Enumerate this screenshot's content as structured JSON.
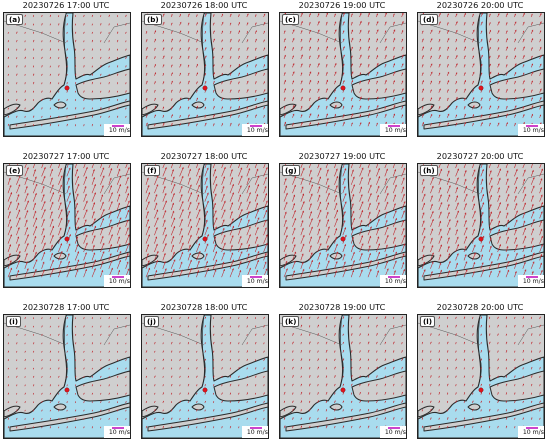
{
  "figure": {
    "colors": {
      "land": "#cfcfcf",
      "water": "#a9dcee",
      "coast": "#2b2b2b",
      "arrow": "#c0282f",
      "scale_bar": "#cc44cc",
      "site_marker": "#e0141e"
    },
    "scale_label": "10 m/s",
    "panels": [
      {
        "label": "(a)",
        "title": "20230726 17:00 UTC",
        "wind": {
          "u": 0.4,
          "v": 1.2
        }
      },
      {
        "label": "(b)",
        "title": "20230726 18:00 UTC",
        "wind": {
          "u": 0.8,
          "v": 2.0
        }
      },
      {
        "label": "(c)",
        "title": "20230726 19:00 UTC",
        "wind": {
          "u": 1.0,
          "v": 2.6
        }
      },
      {
        "label": "(d)",
        "title": "20230726 20:00 UTC",
        "wind": {
          "u": 1.0,
          "v": 2.4
        }
      },
      {
        "label": "(e)",
        "title": "20230727 17:00 UTC",
        "wind": {
          "u": 2.2,
          "v": 5.8
        }
      },
      {
        "label": "(f)",
        "title": "20230727 18:00 UTC",
        "wind": {
          "u": 2.2,
          "v": 5.8
        }
      },
      {
        "label": "(g)",
        "title": "20230727 19:00 UTC",
        "wind": {
          "u": 2.0,
          "v": 5.4
        }
      },
      {
        "label": "(h)",
        "title": "20230727 20:00 UTC",
        "wind": {
          "u": 1.8,
          "v": 4.8
        }
      },
      {
        "label": "(i)",
        "title": "20230728 17:00 UTC",
        "wind": {
          "u": 0.4,
          "v": 1.0
        }
      },
      {
        "label": "(j)",
        "title": "20230728 18:00 UTC",
        "wind": {
          "u": 0.5,
          "v": 1.2
        }
      },
      {
        "label": "(k)",
        "title": "20230728 19:00 UTC",
        "wind": {
          "u": 0.6,
          "v": 1.5
        }
      },
      {
        "label": "(l)",
        "title": "20230728 20:00 UTC",
        "wind": {
          "u": 0.5,
          "v": 1.4
        }
      }
    ]
  }
}
